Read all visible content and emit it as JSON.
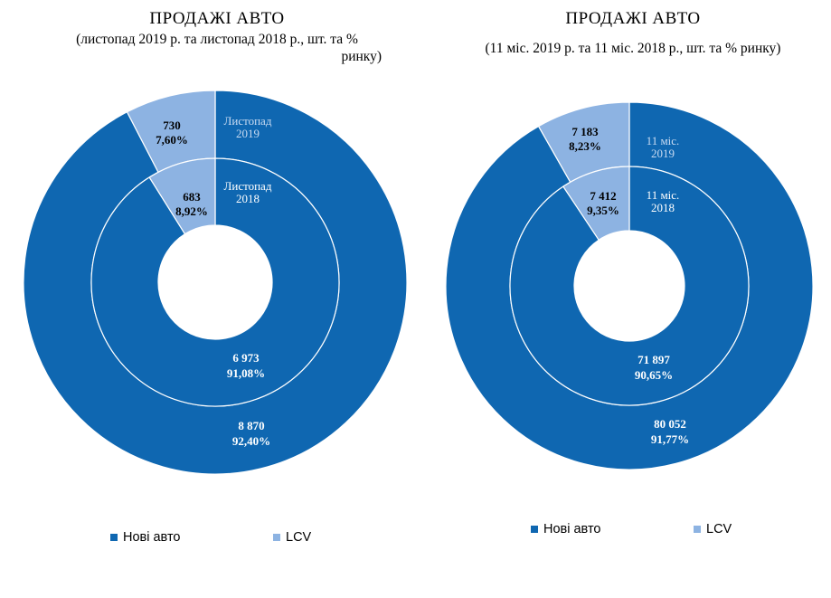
{
  "chart_data": [
    {
      "type": "pie",
      "title": "ПРОДАЖІ АВТО",
      "subtitle_line1": "(листопад 2019 р. та листопад 2018 р., шт. та %",
      "subtitle_line2": "ринку)",
      "rings": [
        {
          "name": "Листопад 2019",
          "label_line1": "Листопад",
          "label_line2": "2019",
          "slices": [
            {
              "category": "Нові авто",
              "value": 8870,
              "value_label": "8 870",
              "percent_label": "92,40%"
            },
            {
              "category": "LCV",
              "value": 730,
              "value_label": "730",
              "percent_label": "7,60%"
            }
          ]
        },
        {
          "name": "Листопад 2018",
          "label_line1": "Листопад",
          "label_line2": "2018",
          "slices": [
            {
              "category": "Нові авто",
              "value": 6973,
              "value_label": "6 973",
              "percent_label": "91,08%"
            },
            {
              "category": "LCV",
              "value": 683,
              "value_label": "683",
              "percent_label": "8,92%"
            }
          ]
        }
      ],
      "legend": [
        {
          "label": "Нові авто",
          "color": "#0f67b1"
        },
        {
          "label": "LCV",
          "color": "#8db3e2"
        }
      ]
    },
    {
      "type": "pie",
      "title": "ПРОДАЖІ АВТО",
      "subtitle_line1": "(11 міс. 2019 р. та 11 міс. 2018 р., шт. та % ринку)",
      "subtitle_line2": "",
      "rings": [
        {
          "name": "11 міс. 2019",
          "label_line1": "11 міс.",
          "label_line2": "2019",
          "slices": [
            {
              "category": "Нові авто",
              "value": 80052,
              "value_label": "80 052",
              "percent_label": "91,77%"
            },
            {
              "category": "LCV",
              "value": 7183,
              "value_label": "7 183",
              "percent_label": "8,23%"
            }
          ]
        },
        {
          "name": "11 міс. 2018",
          "label_line1": "11 міс.",
          "label_line2": "2018",
          "slices": [
            {
              "category": "Нові авто",
              "value": 71897,
              "value_label": "71 897",
              "percent_label": "90,65%"
            },
            {
              "category": "LCV",
              "value": 7412,
              "value_label": "7 412",
              "percent_label": "9,35%"
            }
          ]
        }
      ],
      "legend": [
        {
          "label": "Нові авто",
          "color": "#0f67b1"
        },
        {
          "label": "LCV",
          "color": "#8db3e2"
        }
      ]
    }
  ],
  "colors": {
    "new_cars": "#0f67b1",
    "lcv": "#8db3e2",
    "separator": "#ffffff"
  }
}
